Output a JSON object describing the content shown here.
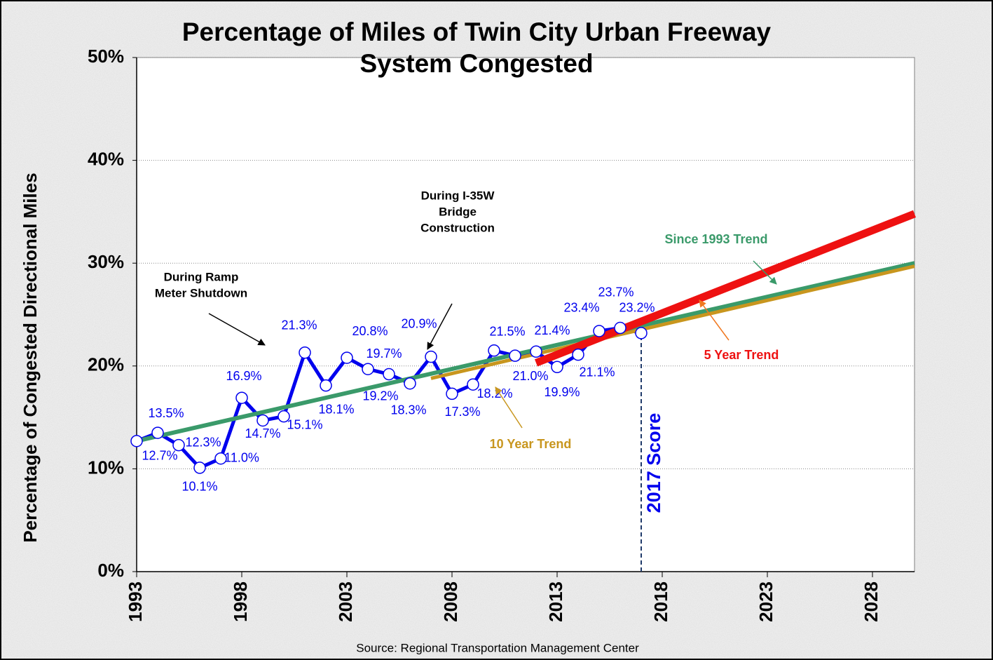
{
  "chart_data": {
    "type": "line",
    "title": [
      "Percentage of Miles of Twin City Urban Freeway",
      "System Congested"
    ],
    "y_label": "Percentage of Congested Directional Miles",
    "source": "Source: Regional Transportation Management Center",
    "x": [
      1993,
      1994,
      1995,
      1996,
      1997,
      1998,
      1999,
      2000,
      2001,
      2002,
      2003,
      2004,
      2005,
      2006,
      2007,
      2008,
      2009,
      2010,
      2011,
      2012,
      2013,
      2014,
      2015,
      2016,
      2017
    ],
    "values": [
      12.7,
      13.5,
      12.3,
      10.1,
      11.0,
      16.9,
      14.7,
      15.1,
      21.3,
      18.1,
      20.8,
      19.7,
      19.2,
      18.3,
      20.9,
      17.3,
      18.2,
      21.5,
      21.0,
      21.4,
      19.9,
      21.1,
      23.4,
      23.7,
      23.2
    ],
    "value_labels": [
      "12.7%",
      "13.5%",
      "12.3%",
      "10.1%",
      "11.0%",
      "16.9%",
      "14.7%",
      "15.1%",
      "21.3%",
      "18.1%",
      "20.8%",
      "19.7%",
      "19.2%",
      "18.3%",
      "20.9%",
      "17.3%",
      "18.2%",
      "21.5%",
      "21.0%",
      "21.4%",
      "19.9%",
      "21.1%",
      "23.4%",
      "23.7%",
      "23.2%"
    ],
    "color": "#0000ee",
    "trends": [
      {
        "name": "Since 1993 Trend",
        "color": "#3a9a6a",
        "x": [
          1993,
          2030
        ],
        "values": [
          12.7,
          30.0
        ]
      },
      {
        "name": "10 Year Trend",
        "color": "#c8961e",
        "x": [
          2007,
          2030
        ],
        "values": [
          18.8,
          29.7
        ]
      },
      {
        "name": "5 Year Trend",
        "color": "#ee1111",
        "x": [
          2012,
          2030
        ],
        "values": [
          20.3,
          34.8
        ]
      }
    ],
    "score_line": {
      "label": "2017 Score",
      "x": 2017
    },
    "annotations": [
      {
        "lines": [
          "During Ramp",
          "Meter Shutdown"
        ]
      },
      {
        "lines": [
          "During I-35W",
          "Bridge",
          "Construction"
        ]
      }
    ],
    "xlim": [
      1993,
      2030
    ],
    "xticks": [
      1993,
      1998,
      2003,
      2008,
      2013,
      2018,
      2023,
      2028
    ],
    "ylim": [
      0,
      50
    ],
    "yticks": [
      {
        "value": 0,
        "label": "0%"
      },
      {
        "value": 10,
        "label": "10%"
      },
      {
        "value": 20,
        "label": "20%"
      },
      {
        "value": 30,
        "label": "30%"
      },
      {
        "value": 40,
        "label": "40%"
      },
      {
        "value": 50,
        "label": "50%"
      }
    ],
    "grid": true
  }
}
